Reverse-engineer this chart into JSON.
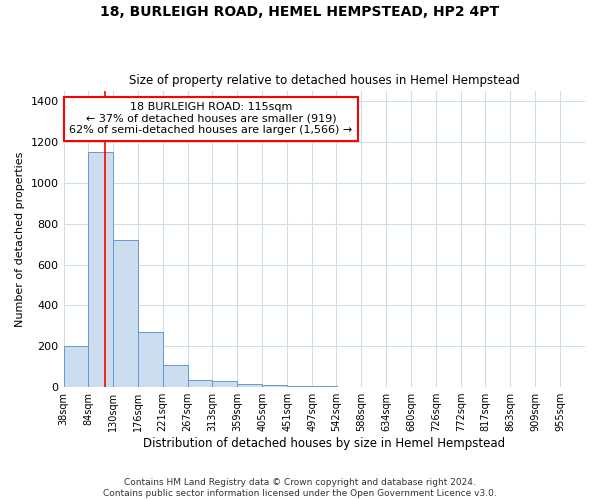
{
  "title": "18, BURLEIGH ROAD, HEMEL HEMPSTEAD, HP2 4PT",
  "subtitle": "Size of property relative to detached houses in Hemel Hempstead",
  "xlabel": "Distribution of detached houses by size in Hemel Hempstead",
  "ylabel": "Number of detached properties",
  "bar_color": "#ccddf0",
  "bar_edge_color": "#6699cc",
  "bin_edges": [
    38,
    84,
    130,
    176,
    221,
    267,
    313,
    359,
    405,
    451,
    497,
    542,
    588,
    634,
    680,
    726,
    772,
    817,
    863,
    909,
    955
  ],
  "bar_heights": [
    200,
    1150,
    720,
    270,
    110,
    35,
    30,
    15,
    10,
    5,
    3,
    2,
    2,
    1,
    1,
    1,
    1,
    1,
    1,
    1
  ],
  "red_line_x": 115,
  "annotation_title": "18 BURLEIGH ROAD: 115sqm",
  "annotation_line1": "← 37% of detached houses are smaller (919)",
  "annotation_line2": "62% of semi-detached houses are larger (1,566) →",
  "annotation_box_color": "white",
  "annotation_box_edge_color": "red",
  "red_line_color": "red",
  "ylim": [
    0,
    1450
  ],
  "yticks": [
    0,
    200,
    400,
    600,
    800,
    1000,
    1200,
    1400
  ],
  "grid_color": "#d0dce8",
  "background_color": "#ffffff",
  "footer_line1": "Contains HM Land Registry data © Crown copyright and database right 2024.",
  "footer_line2": "Contains public sector information licensed under the Open Government Licence v3.0."
}
